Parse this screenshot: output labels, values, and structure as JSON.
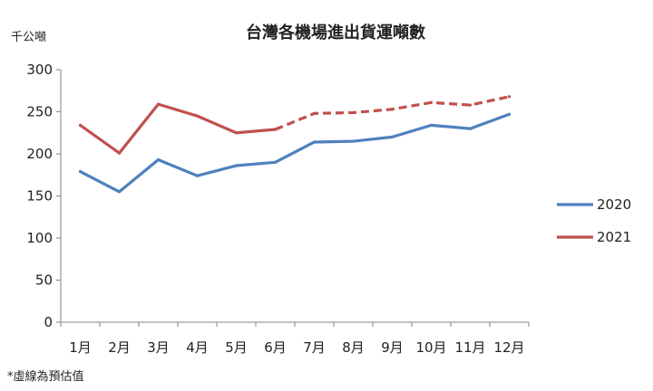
{
  "chart_data": {
    "type": "line",
    "title": "台灣各機場進出貨運噸數",
    "ylabel": "千公噸",
    "xlabel": "",
    "categories": [
      "1月",
      "2月",
      "3月",
      "4月",
      "5月",
      "6月",
      "7月",
      "8月",
      "9月",
      "10月",
      "11月",
      "12月"
    ],
    "ylim": [
      0,
      300
    ],
    "yticks": [
      "0",
      "50",
      "100",
      "150",
      "200",
      "250",
      "300"
    ],
    "series": [
      {
        "name": "2020",
        "color": "#4f81bd",
        "values": [
          179,
          155,
          193,
          174,
          186,
          190,
          214,
          215,
          220,
          234,
          230,
          247
        ]
      },
      {
        "name": "2021",
        "color": "#c0504d",
        "values": [
          234,
          201,
          259,
          245,
          225,
          229,
          248,
          249,
          253,
          261,
          258,
          268
        ],
        "estimated_from_index": 6
      }
    ],
    "footnote": "*虛線為預估值",
    "legend_position": "right",
    "grid": false
  }
}
